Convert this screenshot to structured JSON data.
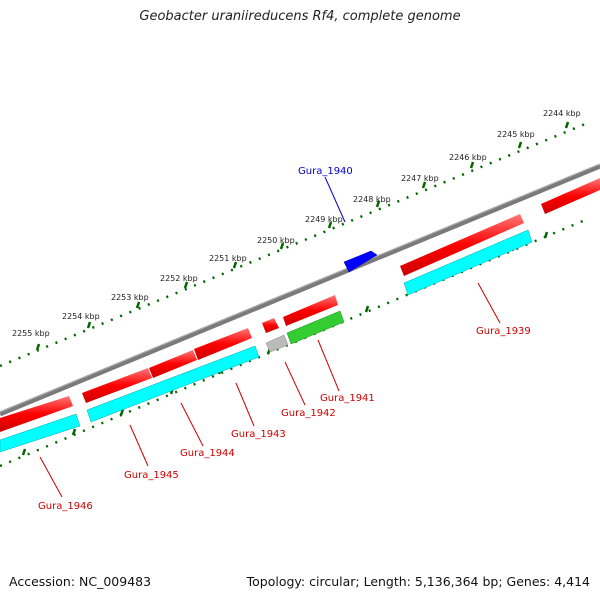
{
  "title": "Geobacter uraniireducens Rf4, complete genome",
  "footer": {
    "accession": "Accession: NC_009483",
    "summary": "Topology: circular; Length: 5,136,364 bp; Genes: 4,414"
  },
  "kbp_labels": [
    "2244 kbp",
    "2245 kbp",
    "2246 kbp",
    "2247 kbp",
    "2248 kbp",
    "2249 kbp",
    "2250 kbp",
    "2251 kbp",
    "2252 kbp",
    "2253 kbp",
    "2254 kbp",
    "2255 kbp"
  ],
  "gene_labels": [
    "Gura_1940",
    "Gura_1939",
    "Gura_1941",
    "Gura_1942",
    "Gura_1943",
    "Gura_1944",
    "Gura_1945",
    "Gura_1946"
  ],
  "colors": {
    "backbone": "#808080",
    "gene_red": "#ff0000",
    "gene_cyan": "#00ffff",
    "gene_green": "#33cc33",
    "gene_blue": "#0000ff",
    "gene_gray": "#bbbbbb",
    "tick": "#006600",
    "label_red": "#cc0000",
    "label_blue": "#0000cc"
  }
}
